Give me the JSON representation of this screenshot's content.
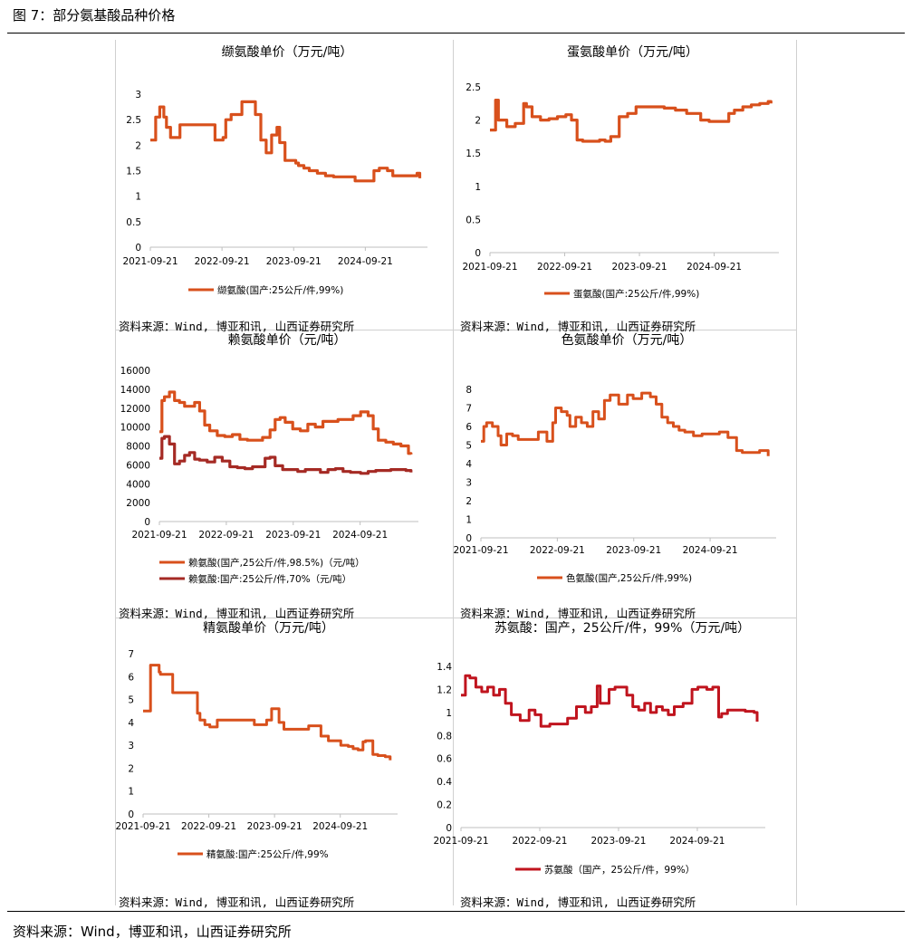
{
  "figure_title": "图 7：部分氨基酸品种价格",
  "footer_source": "资料来源：Wind，博亚和讯，山西证券研究所",
  "panel_source": "资料来源：Wind, 博亚和讯, 山西证券研究所",
  "colors": {
    "orange": "#d8501c",
    "darkred": "#a52a24",
    "red": "#c0141e"
  },
  "chart_data": [
    {
      "id": "valine",
      "type": "line",
      "title": "缬氨酸单价（万元/吨）",
      "y_ticks": [
        "0",
        "0.5",
        "1",
        "1.5",
        "2",
        "2.5",
        "3"
      ],
      "ylim": [
        0,
        3
      ],
      "x_ticks": [
        "2021-09-21",
        "2022-09-21",
        "2023-09-21",
        "2024-09-21"
      ],
      "series": [
        {
          "name": "缬氨酸(国产:25公斤/件,99%)",
          "color": "#d8501c",
          "x": [
            0,
            0.02,
            0.035,
            0.05,
            0.06,
            0.075,
            0.09,
            0.11,
            0.13,
            0.16,
            0.2,
            0.24,
            0.27,
            0.28,
            0.3,
            0.32,
            0.34,
            0.37,
            0.39,
            0.41,
            0.43,
            0.45,
            0.47,
            0.48,
            0.5,
            0.52,
            0.54,
            0.55,
            0.57,
            0.59,
            0.62,
            0.65,
            0.68,
            0.72,
            0.76,
            0.8,
            0.83,
            0.85,
            0.88,
            0.9,
            0.93,
            0.96,
            0.99,
            1.0
          ],
          "values": [
            2.1,
            2.55,
            2.75,
            2.55,
            2.35,
            2.15,
            2.15,
            2.4,
            2.4,
            2.4,
            2.4,
            2.1,
            2.15,
            2.5,
            2.6,
            2.6,
            2.85,
            2.85,
            2.6,
            2.1,
            1.85,
            2.2,
            2.35,
            2.05,
            1.7,
            1.7,
            1.65,
            1.6,
            1.55,
            1.5,
            1.45,
            1.4,
            1.38,
            1.38,
            1.3,
            1.3,
            1.5,
            1.55,
            1.5,
            1.4,
            1.4,
            1.4,
            1.45,
            1.35
          ]
        }
      ]
    },
    {
      "id": "methionine",
      "type": "line",
      "title": "蛋氨酸单价（万元/吨）",
      "y_ticks": [
        "0",
        "0.5",
        "1",
        "1.5",
        "2",
        "2.5"
      ],
      "ylim": [
        0,
        2.5
      ],
      "x_ticks": [
        "2021-09-21",
        "2022-09-21",
        "2023-09-21",
        "2024-09-21"
      ],
      "series": [
        {
          "name": "蛋氨酸(国产:25公斤/件,99%)",
          "color": "#d8501c",
          "x": [
            0,
            0.02,
            0.03,
            0.045,
            0.06,
            0.09,
            0.12,
            0.13,
            0.15,
            0.18,
            0.21,
            0.24,
            0.27,
            0.29,
            0.31,
            0.33,
            0.35,
            0.37,
            0.39,
            0.41,
            0.43,
            0.46,
            0.49,
            0.5,
            0.52,
            0.55,
            0.58,
            0.62,
            0.66,
            0.7,
            0.75,
            0.78,
            0.82,
            0.85,
            0.87,
            0.9,
            0.93,
            0.96,
            0.99,
            1.0
          ],
          "values": [
            1.85,
            2.3,
            2.0,
            2.0,
            1.9,
            1.95,
            2.25,
            2.2,
            2.05,
            2.0,
            2.02,
            2.05,
            2.08,
            2.0,
            1.7,
            1.68,
            1.68,
            1.68,
            1.7,
            1.68,
            1.75,
            2.05,
            2.1,
            2.1,
            2.2,
            2.2,
            2.2,
            2.18,
            2.15,
            2.1,
            2.0,
            1.98,
            1.98,
            2.1,
            2.15,
            2.2,
            2.23,
            2.25,
            2.28,
            2.25
          ]
        }
      ]
    },
    {
      "id": "lysine",
      "type": "line",
      "title": "赖氨酸单价（元/吨）",
      "y_ticks": [
        "0",
        "2000",
        "4000",
        "6000",
        "8000",
        "10000",
        "12000",
        "14000",
        "16000"
      ],
      "ylim": [
        0,
        16000
      ],
      "x_ticks": [
        "2021-09-21",
        "2022-09-21",
        "2023-09-21",
        "2024-09-21"
      ],
      "series": [
        {
          "name": "赖氨酸(国产,25公斤/件,98.5%)（元/吨）",
          "color": "#d8501c",
          "x": [
            0,
            0.01,
            0.02,
            0.04,
            0.06,
            0.08,
            0.1,
            0.12,
            0.14,
            0.16,
            0.18,
            0.2,
            0.23,
            0.26,
            0.29,
            0.32,
            0.35,
            0.38,
            0.41,
            0.44,
            0.46,
            0.48,
            0.5,
            0.53,
            0.56,
            0.59,
            0.62,
            0.65,
            0.68,
            0.71,
            0.74,
            0.77,
            0.8,
            0.83,
            0.85,
            0.87,
            0.9,
            0.93,
            0.96,
            0.99,
            1.0
          ],
          "values": [
            9500,
            12800,
            13200,
            13700,
            12800,
            12600,
            12200,
            12200,
            12600,
            11700,
            10200,
            9600,
            9100,
            9000,
            9200,
            8700,
            8600,
            8600,
            8900,
            9700,
            10800,
            11000,
            10500,
            9800,
            9600,
            10300,
            10000,
            10600,
            10600,
            10800,
            10800,
            11200,
            11600,
            11200,
            9800,
            8600,
            8400,
            8200,
            8000,
            7200,
            7100
          ]
        },
        {
          "name": "赖氨酸:国产:25公斤/件,70%（元/吨）",
          "color": "#a52a24",
          "x": [
            0,
            0.01,
            0.02,
            0.04,
            0.06,
            0.08,
            0.1,
            0.12,
            0.14,
            0.16,
            0.19,
            0.22,
            0.25,
            0.28,
            0.31,
            0.34,
            0.37,
            0.4,
            0.42,
            0.44,
            0.46,
            0.49,
            0.52,
            0.55,
            0.58,
            0.61,
            0.64,
            0.67,
            0.7,
            0.73,
            0.76,
            0.8,
            0.83,
            0.86,
            0.89,
            0.92,
            0.95,
            0.98,
            1.0
          ],
          "values": [
            6700,
            8800,
            9000,
            8200,
            6100,
            6400,
            7000,
            7300,
            6600,
            6500,
            6300,
            6800,
            6400,
            5800,
            5700,
            5600,
            5800,
            5800,
            6700,
            6800,
            5900,
            5500,
            5500,
            5300,
            5500,
            5500,
            5200,
            5500,
            5600,
            5300,
            5200,
            5100,
            5300,
            5400,
            5400,
            5500,
            5500,
            5400,
            5200
          ]
        }
      ]
    },
    {
      "id": "tryptophan",
      "type": "line",
      "title": "色氨酸单价（万元/吨）",
      "y_ticks": [
        "0",
        "1",
        "2",
        "3",
        "4",
        "5",
        "6",
        "7",
        "8"
      ],
      "ylim": [
        0,
        8
      ],
      "x_ticks": [
        "2021-09-21",
        "2022-09-21",
        "2023-09-21",
        "2024-09-21"
      ],
      "series": [
        {
          "name": "色氨酸(国产,25公斤/件,99%)",
          "color": "#d8501c",
          "x": [
            0,
            0.01,
            0.02,
            0.04,
            0.06,
            0.07,
            0.08,
            0.09,
            0.11,
            0.13,
            0.15,
            0.17,
            0.2,
            0.23,
            0.25,
            0.26,
            0.28,
            0.3,
            0.31,
            0.33,
            0.35,
            0.37,
            0.39,
            0.41,
            0.43,
            0.45,
            0.48,
            0.51,
            0.53,
            0.56,
            0.59,
            0.61,
            0.63,
            0.65,
            0.67,
            0.69,
            0.71,
            0.74,
            0.77,
            0.8,
            0.83,
            0.86,
            0.89,
            0.91,
            0.94,
            0.97,
            0.99,
            1.0
          ],
          "values": [
            5.2,
            6.0,
            6.2,
            6.0,
            5.5,
            5.0,
            5.0,
            5.6,
            5.5,
            5.3,
            5.3,
            5.3,
            5.7,
            5.2,
            6.2,
            7.0,
            6.8,
            6.6,
            6.0,
            6.5,
            6.2,
            6.0,
            6.8,
            6.4,
            7.4,
            7.7,
            7.2,
            7.7,
            7.5,
            7.8,
            7.6,
            7.2,
            6.5,
            6.2,
            6.0,
            5.8,
            5.7,
            5.5,
            5.6,
            5.6,
            5.7,
            5.4,
            4.7,
            4.6,
            4.6,
            4.7,
            4.7,
            4.4
          ]
        }
      ]
    },
    {
      "id": "arginine",
      "type": "line",
      "title": "精氨酸单价（万元/吨）",
      "y_ticks": [
        "0",
        "1",
        "2",
        "3",
        "4",
        "5",
        "6",
        "7"
      ],
      "ylim": [
        0,
        7
      ],
      "x_ticks": [
        "2021-09-21",
        "2022-09-21",
        "2023-09-21",
        "2024-09-21"
      ],
      "series": [
        {
          "name": "精氨酸:国产:25公斤/件,99%",
          "color": "#d8501c",
          "x": [
            0,
            0.025,
            0.03,
            0.05,
            0.065,
            0.07,
            0.1,
            0.12,
            0.15,
            0.2,
            0.22,
            0.23,
            0.25,
            0.27,
            0.3,
            0.34,
            0.4,
            0.44,
            0.45,
            0.5,
            0.52,
            0.54,
            0.55,
            0.57,
            0.61,
            0.62,
            0.67,
            0.69,
            0.72,
            0.75,
            0.8,
            0.83,
            0.85,
            0.87,
            0.89,
            0.9,
            0.93,
            0.95,
            0.98,
            1.0
          ],
          "values": [
            4.5,
            4.5,
            6.5,
            6.5,
            6.2,
            6.1,
            6.1,
            5.3,
            5.3,
            5.3,
            4.4,
            4.1,
            3.9,
            3.8,
            4.1,
            4.1,
            4.1,
            4.1,
            3.9,
            4.1,
            4.6,
            4.6,
            4.0,
            3.7,
            3.7,
            3.7,
            3.85,
            3.85,
            3.4,
            3.2,
            3.0,
            2.95,
            2.85,
            2.8,
            3.15,
            3.2,
            2.6,
            2.55,
            2.5,
            2.35
          ]
        }
      ]
    },
    {
      "id": "threonine",
      "type": "line",
      "title": "苏氨酸：国产，25公斤/件，99%（万元/吨）",
      "y_ticks": [
        "0",
        "0.2",
        "0.4",
        "0.6",
        "0.8",
        "1",
        "1.2",
        "1.4"
      ],
      "ylim": [
        0,
        1.4
      ],
      "x_ticks": [
        "2021-09-21",
        "2022-09-21",
        "2023-09-21",
        "2024-09-21"
      ],
      "series": [
        {
          "name": "苏氨酸（国产，25公斤/件，99%）",
          "color": "#c0141e",
          "x": [
            0,
            0.015,
            0.03,
            0.05,
            0.07,
            0.09,
            0.11,
            0.13,
            0.15,
            0.17,
            0.2,
            0.23,
            0.25,
            0.27,
            0.3,
            0.33,
            0.36,
            0.39,
            0.42,
            0.44,
            0.46,
            0.47,
            0.48,
            0.5,
            0.52,
            0.54,
            0.56,
            0.58,
            0.6,
            0.62,
            0.64,
            0.66,
            0.68,
            0.7,
            0.72,
            0.75,
            0.78,
            0.8,
            0.83,
            0.85,
            0.87,
            0.88,
            0.9,
            0.93,
            0.96,
            0.99,
            1.0
          ],
          "values": [
            1.15,
            1.32,
            1.3,
            1.22,
            1.18,
            1.22,
            1.15,
            1.2,
            1.08,
            0.98,
            0.93,
            1.02,
            0.98,
            0.88,
            0.9,
            0.9,
            0.95,
            1.05,
            1.0,
            1.05,
            1.23,
            1.08,
            1.08,
            1.2,
            1.22,
            1.22,
            1.15,
            1.05,
            1.02,
            1.08,
            1.0,
            1.05,
            1.02,
            0.98,
            1.05,
            1.08,
            1.2,
            1.22,
            1.2,
            1.22,
            0.96,
            0.99,
            1.02,
            1.02,
            1.01,
            1.0,
            0.92
          ]
        }
      ]
    }
  ]
}
